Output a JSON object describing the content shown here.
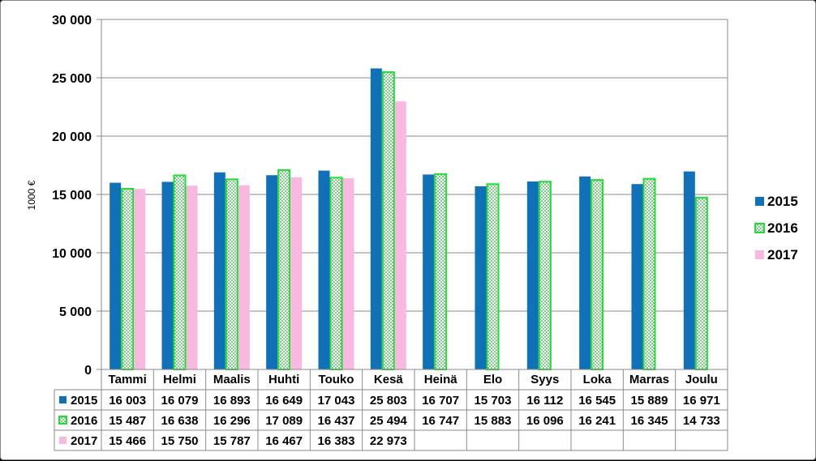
{
  "chart_data": {
    "type": "bar",
    "ylabel": "1000 €",
    "ylim": [
      0,
      30000
    ],
    "yticks": [
      "0",
      "5 000",
      "10 000",
      "15 000",
      "20 000",
      "25 000",
      "30 000"
    ],
    "grid": true,
    "legend_position": "right",
    "categories": [
      "Tammi",
      "Helmi",
      "Maalis",
      "Huhti",
      "Touko",
      "Kesä",
      "Heinä",
      "Elo",
      "Syys",
      "Loka",
      "Marras",
      "Joulu"
    ],
    "series": [
      {
        "name": "2015",
        "color": "#1070B8",
        "pattern": "solid",
        "values": [
          16003,
          16079,
          16893,
          16649,
          17043,
          25803,
          16707,
          15703,
          16112,
          16545,
          15889,
          16971
        ],
        "labels": [
          "16 003",
          "16 079",
          "16 893",
          "16 649",
          "17 043",
          "25 803",
          "16 707",
          "15 703",
          "16 112",
          "16 545",
          "15 889",
          "16 971"
        ]
      },
      {
        "name": "2016",
        "color": "#22DD33",
        "pattern": "dotted",
        "values": [
          15487,
          16638,
          16296,
          17089,
          16437,
          25494,
          16747,
          15883,
          16096,
          16241,
          16345,
          14733
        ],
        "labels": [
          "15 487",
          "16 638",
          "16 296",
          "17 089",
          "16 437",
          "25 494",
          "16 747",
          "15 883",
          "16 096",
          "16 241",
          "16 345",
          "14 733"
        ]
      },
      {
        "name": "2017",
        "color": "#F8B8E0",
        "pattern": "solid",
        "values": [
          15466,
          15750,
          15787,
          16467,
          16383,
          22973,
          null,
          null,
          null,
          null,
          null,
          null
        ],
        "labels": [
          "15 466",
          "15 750",
          "15 787",
          "16 467",
          "16 383",
          "22 973",
          "",
          "",
          "",
          "",
          "",
          ""
        ]
      }
    ]
  }
}
